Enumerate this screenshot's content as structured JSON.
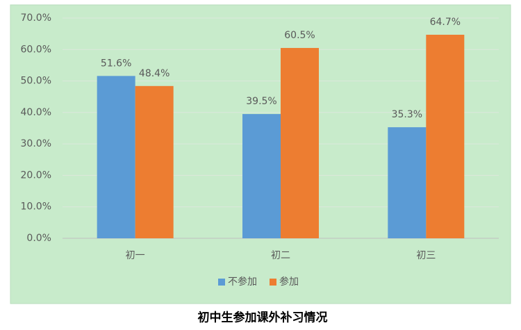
{
  "chart_data": {
    "type": "bar",
    "title": "初中生参加课外补习情况",
    "categories": [
      "初一",
      "初二",
      "初三"
    ],
    "series": [
      {
        "name": "不参加",
        "color": "#5b9bd5",
        "values": [
          51.6,
          39.5,
          35.3
        ],
        "value_labels": [
          "51.6%",
          "39.5%",
          "35.3%"
        ]
      },
      {
        "name": "参加",
        "color": "#ed7d31",
        "values": [
          48.4,
          60.5,
          64.7
        ],
        "value_labels": [
          "48.4%",
          "60.5%",
          "64.7%"
        ]
      }
    ],
    "ylim": [
      0,
      70
    ],
    "yticks": [
      {
        "value": 0,
        "label": "0.0%"
      },
      {
        "value": 10,
        "label": "10.0%"
      },
      {
        "value": 20,
        "label": "20.0%"
      },
      {
        "value": 30,
        "label": "30.0%"
      },
      {
        "value": 40,
        "label": "40.0%"
      },
      {
        "value": 50,
        "label": "50.0%"
      },
      {
        "value": 60,
        "label": "60.0%"
      },
      {
        "value": 70,
        "label": "70.0%"
      }
    ],
    "grid": true,
    "legend": "bottom"
  }
}
